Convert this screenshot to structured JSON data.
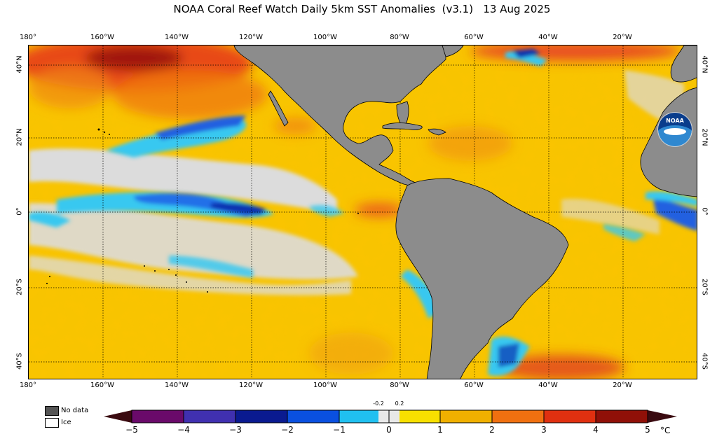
{
  "title": {
    "main": "NOAA Coral Reef Watch Daily 5km SST Anomalies",
    "version": "(v3.1)",
    "date": "13 Aug 2025"
  },
  "lon_labels": [
    "180°",
    "160°W",
    "140°W",
    "120°W",
    "100°W",
    "80°W",
    "60°W",
    "40°W",
    "20°W"
  ],
  "lat_labels": [
    "40°N",
    "20°N",
    "0°",
    "20°S",
    "40°S"
  ],
  "legend": {
    "no_data": "No data",
    "ice": "Ice"
  },
  "colorbar": {
    "ticks": [
      "−5",
      "−4",
      "−3",
      "−2",
      "−1",
      "0",
      "1",
      "2",
      "3",
      "4",
      "5"
    ],
    "small_ticks": [
      "-0.2",
      "0.2"
    ],
    "unit": "°C"
  },
  "logo": {
    "text": "NOAA"
  },
  "colors": {
    "land": "#8c8c8c",
    "neutral": "#dcdcdc",
    "warm": "#f7c000",
    "hot": "#f36a10",
    "cold": "#3cc8f0"
  }
}
